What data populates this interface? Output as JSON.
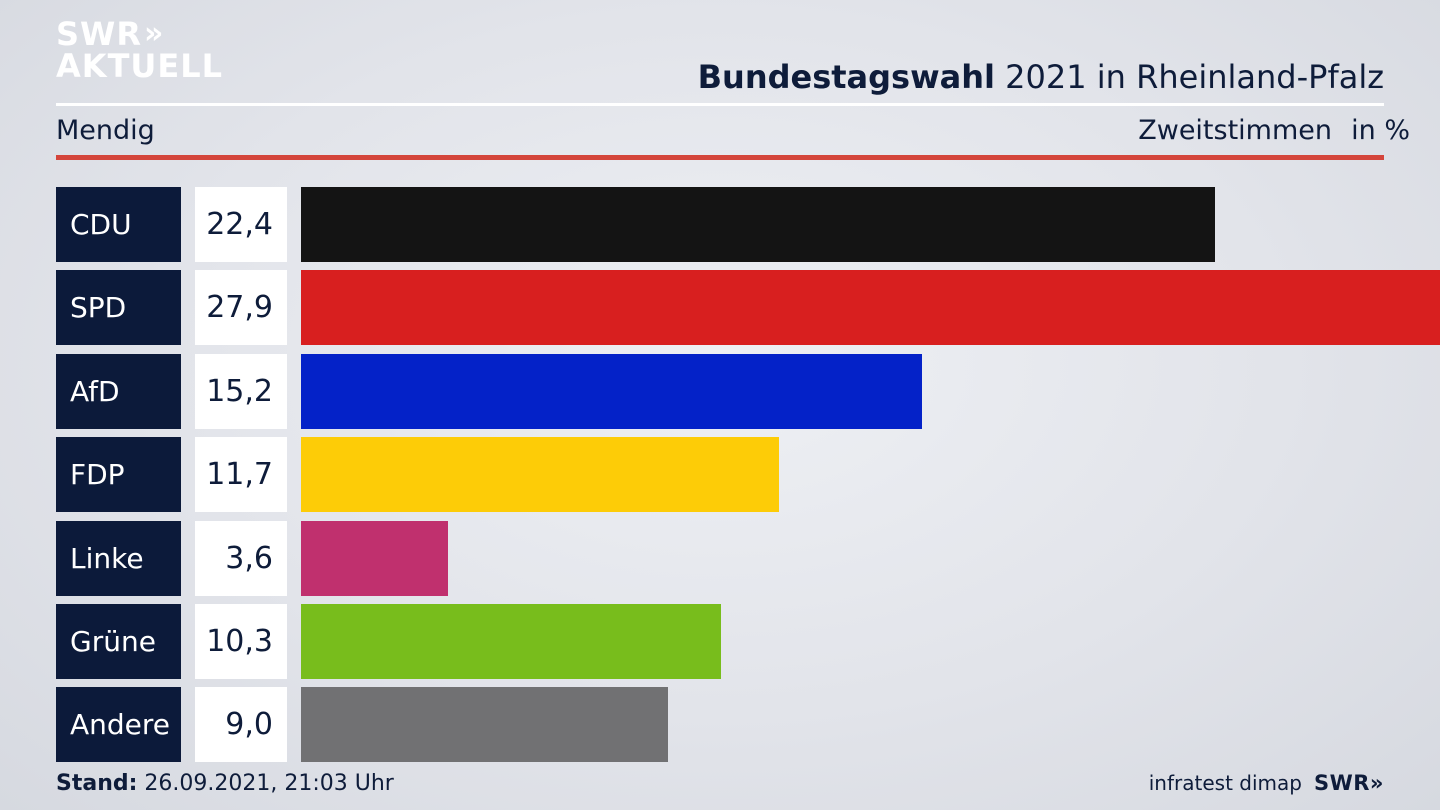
{
  "brand": {
    "line1": "SWR",
    "line2": "AKTUELL"
  },
  "header": {
    "title_bold": "Bundestagswahl",
    "title_rest": " 2021 in Rheinland-Pfalz",
    "region": "Mendig",
    "measure": "Zweitstimmen",
    "unit": "in %"
  },
  "chart_data": {
    "type": "bar",
    "orientation": "horizontal",
    "categories": [
      "CDU",
      "SPD",
      "AfD",
      "FDP",
      "Linke",
      "Grüne",
      "Andere"
    ],
    "values": [
      22.4,
      27.9,
      15.2,
      11.7,
      3.6,
      10.3,
      9.0
    ],
    "value_labels": [
      "22,4",
      "27,9",
      "15,2",
      "11,7",
      "3,6",
      "10,3",
      "9,0"
    ],
    "colors": [
      "#141414",
      "#d81f1f",
      "#0422c8",
      "#fdcc07",
      "#c0306e",
      "#78bd1c",
      "#717173"
    ],
    "xlim": [
      0,
      27.9
    ],
    "ylabel": "Zweitstimmen",
    "unit": "in %"
  },
  "footer": {
    "stand_label": "Stand:",
    "stand_value": " 26.09.2021, 21:03 Uhr",
    "source": "infratest dimap",
    "logo": "SWR"
  }
}
